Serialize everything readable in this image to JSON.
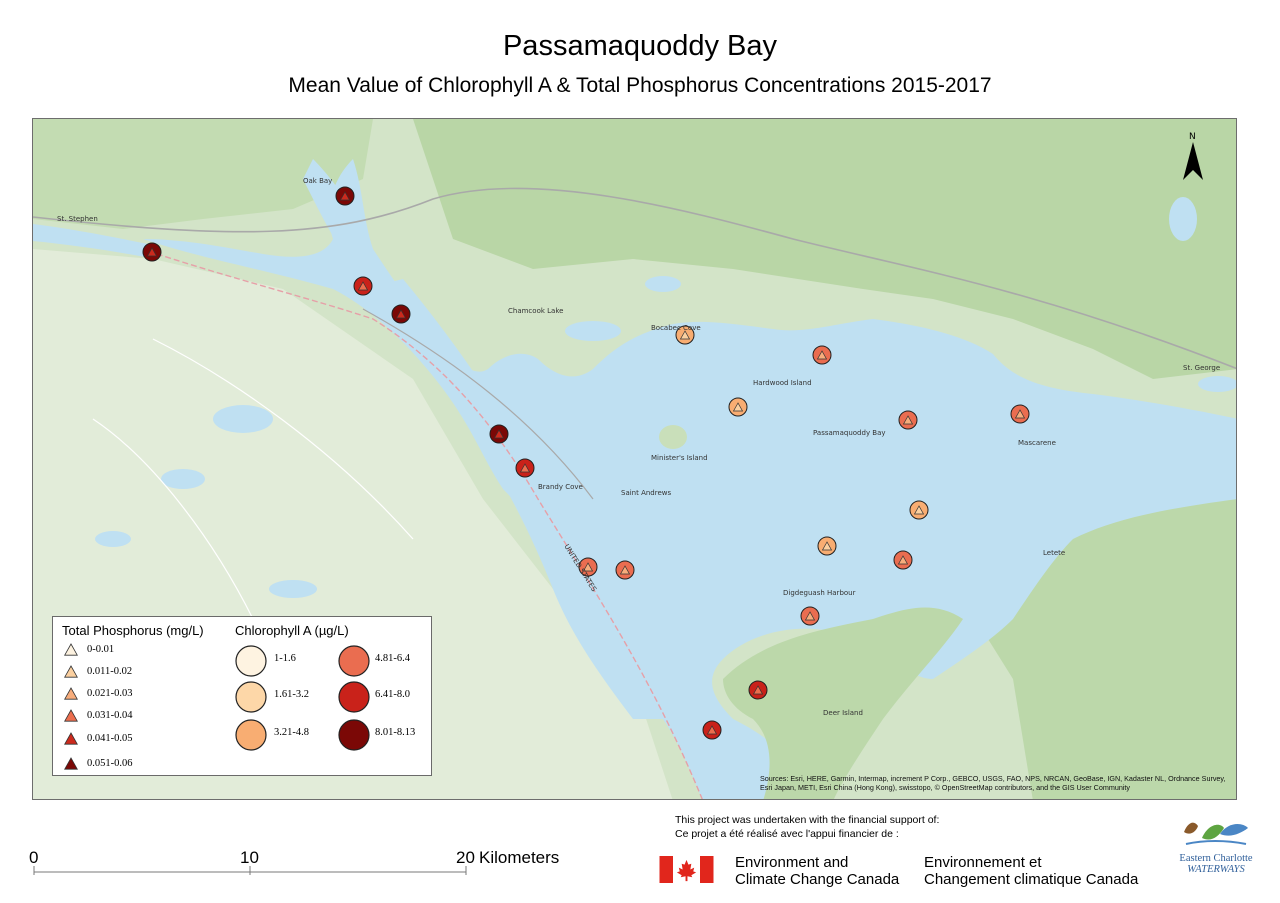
{
  "title": "Passamaquoddy Bay",
  "subtitle": "Mean Value of Chlorophyll A & Total Phosphorus Concentrations 2015-2017",
  "map": {
    "north_label": "N",
    "places": [
      "St. Stephen",
      "Saint Andrews",
      "St. George",
      "Oak Bay",
      "Chamcook Lake",
      "Passamaquoddy Bay",
      "Deer Island",
      "Digdeguash Harbour",
      "Letete",
      "Mascarene",
      "Brandy Cove",
      "Bocabec Cove",
      "Hardwood Island",
      "Minister's Island",
      "UNITED STATES"
    ],
    "sources": "Sources: Esri, HERE, Garmin, Intermap, increment P Corp., GEBCO, USGS, FAO, NPS, NRCAN, GeoBase, IGN, Kadaster NL, Ordnance Survey, Esri Japan, METI, Esri China (Hong Kong), swisstopo, © OpenStreetMap contributors, and the GIS User Community",
    "stations": [
      {
        "chl_class": 6,
        "tp_class": 5
      },
      {
        "chl_class": 5,
        "tp_class": 4
      },
      {
        "chl_class": 6,
        "tp_class": 5
      },
      {
        "chl_class": 6,
        "tp_class": 5
      },
      {
        "chl_class": 6,
        "tp_class": 5
      },
      {
        "chl_class": 5,
        "tp_class": 4
      },
      {
        "chl_class": 3,
        "tp_class": 2
      },
      {
        "chl_class": 3,
        "tp_class": 2
      },
      {
        "chl_class": 4,
        "tp_class": 3
      },
      {
        "chl_class": 4,
        "tp_class": 3
      },
      {
        "chl_class": 4,
        "tp_class": 3
      },
      {
        "chl_class": 3,
        "tp_class": 2
      },
      {
        "chl_class": 3,
        "tp_class": 2
      },
      {
        "chl_class": 4,
        "tp_class": 3
      },
      {
        "chl_class": 4,
        "tp_class": 3
      },
      {
        "chl_class": 4,
        "tp_class": 3
      },
      {
        "chl_class": 4,
        "tp_class": 3
      },
      {
        "chl_class": 5,
        "tp_class": 4
      },
      {
        "chl_class": 5,
        "tp_class": 4
      }
    ]
  },
  "legend": {
    "tp_title": "Total Phosphorus (mg/L)",
    "tp_classes": [
      "0-0.01",
      "0.011-0.02",
      "0.021-0.03",
      "0.031-0.04",
      "0.041-0.05",
      "0.051-0.06"
    ],
    "tp_colors": [
      "#fdf2e0",
      "#fbd0a0",
      "#f7ad7c",
      "#ec6e4e",
      "#cc2a1d",
      "#7b0806"
    ],
    "chl_title": "Chlorophyll A (µg/L)",
    "chl_classes": [
      "1-1.6",
      "1.61-3.2",
      "3.21-4.8",
      "4.81-6.4",
      "6.41-8.0",
      "8.01-8.13"
    ],
    "chl_colors": [
      "#fef3e1",
      "#fdd7a8",
      "#f8ad72",
      "#ea6d50",
      "#c9221a",
      "#7b0806"
    ]
  },
  "scale": {
    "labels": [
      "0",
      "10",
      "20"
    ],
    "unit": "Kilometers"
  },
  "support": {
    "en": "This project was undertaken with the financial support of:",
    "fr": "Ce projet a été réalisé avec l'appui financier de :",
    "org_en_1": "Environment and",
    "org_en_2": "Climate Change Canada",
    "org_fr_1": "Environnement et",
    "org_fr_2": "Changement climatique Canada"
  },
  "logo": {
    "line1": "Eastern Charlotte",
    "line2": "WATERWAYS"
  },
  "colors": {
    "water": "#bfe0f2",
    "land": "#d3e4c8",
    "forest": "#b9d6a6",
    "flag_red": "#e1261c"
  }
}
